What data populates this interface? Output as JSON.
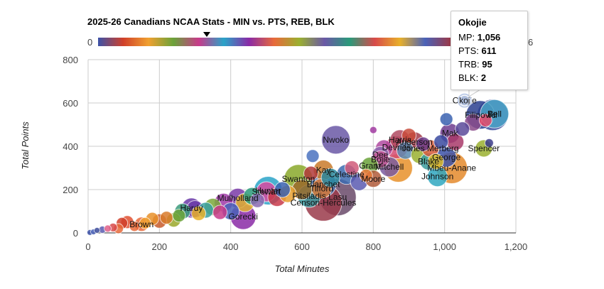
{
  "chart_data": {
    "type": "scatter",
    "title": "2025-26 Canadians NCAA Stats - MIN vs. PTS, REB, BLK",
    "xlabel": "Total Minutes",
    "ylabel": "Total Points",
    "xlim": [
      0,
      1200
    ],
    "ylim": [
      0,
      800
    ],
    "x_ticks": [
      "0",
      "200",
      "400",
      "600",
      "800",
      "1,000",
      "1,200"
    ],
    "y_ticks": [
      "0",
      "200",
      "400",
      "600",
      "800"
    ],
    "grid": true,
    "colorbar": {
      "min_label": "0",
      "max_label": "6"
    },
    "tooltip": {
      "name": "Okojie",
      "rows": [
        {
          "label": "MP:",
          "value": "1,056"
        },
        {
          "label": "PTS:",
          "value": "611"
        },
        {
          "label": "TRB:",
          "value": "95"
        },
        {
          "label": "BLK:",
          "value": "2"
        }
      ]
    },
    "labeled_points": [
      {
        "name": "Fil",
        "x": 1135,
        "y": 545,
        "r": 22,
        "color": "#3b4fa0"
      },
      {
        "name": "Filipovic",
        "x": 1100,
        "y": 545,
        "r": 20,
        "color": "#2a3f8f"
      },
      {
        "name": "Bell",
        "x": 1140,
        "y": 550,
        "r": 20,
        "color": "#49a3c6"
      },
      {
        "name": "Mak",
        "x": 1015,
        "y": 460,
        "r": 14,
        "color": "#6e3c8e"
      },
      {
        "name": "Spencer",
        "x": 1110,
        "y": 390,
        "r": 12,
        "color": "#9ab030"
      },
      {
        "name": "George",
        "x": 1005,
        "y": 350,
        "r": 14,
        "color": "#3c52a8"
      },
      {
        "name": "Mbeu-Anane",
        "x": 1020,
        "y": 300,
        "r": 22,
        "color": "#e48a2b"
      },
      {
        "name": "Blake",
        "x": 955,
        "y": 330,
        "r": 12,
        "color": "#3a9b9c"
      },
      {
        "name": "Johnson",
        "x": 980,
        "y": 260,
        "r": 14,
        "color": "#2fa7c0"
      },
      {
        "name": "Jones Merberg",
        "x": 960,
        "y": 390,
        "r": 12,
        "color": "#d75a3a"
      },
      {
        "name": "Anderson",
        "x": 915,
        "y": 420,
        "r": 14,
        "color": "#a23b4a"
      },
      {
        "name": "Harris",
        "x": 875,
        "y": 430,
        "r": 14,
        "color": "#b04a62"
      },
      {
        "name": "Devries",
        "x": 865,
        "y": 395,
        "r": 16,
        "color": "#d44a72"
      },
      {
        "name": "Okojie",
        "x": 1056,
        "y": 611,
        "r": 7,
        "color": "#9fb1d6"
      },
      {
        "name": "Mitchell",
        "x": 845,
        "y": 305,
        "r": 14,
        "color": "#7a5aa0"
      },
      {
        "name": "Dee",
        "x": 820,
        "y": 360,
        "r": 12,
        "color": "#8e6ab0"
      },
      {
        "name": "Bojie",
        "x": 820,
        "y": 340,
        "r": 12,
        "color": "#c55a9a"
      },
      {
        "name": "Grant",
        "x": 790,
        "y": 310,
        "r": 12,
        "color": "#6aa23a"
      },
      {
        "name": "Moore",
        "x": 800,
        "y": 250,
        "r": 12,
        "color": "#b05a3a"
      },
      {
        "name": "Nwoko",
        "x": 695,
        "y": 430,
        "r": 20,
        "color": "#6a58a6"
      },
      {
        "name": "Celestine",
        "x": 725,
        "y": 270,
        "r": 14,
        "color": "#3c6bb0"
      },
      {
        "name": "Kay",
        "x": 660,
        "y": 290,
        "r": 14,
        "color": "#c97a2a"
      },
      {
        "name": "Swanton",
        "x": 590,
        "y": 250,
        "r": 20,
        "color": "#8aa82a"
      },
      {
        "name": "Lasu",
        "x": 700,
        "y": 165,
        "r": 26,
        "color": "#6a4a6a"
      },
      {
        "name": "Blanchet",
        "x": 660,
        "y": 225,
        "r": 18,
        "color": "#4a72b0"
      },
      {
        "name": "Tilford",
        "x": 655,
        "y": 205,
        "r": 14,
        "color": "#d87a3a"
      },
      {
        "name": "Pitsiladis",
        "x": 620,
        "y": 170,
        "r": 16,
        "color": "#3c9aa0"
      },
      {
        "name": "Censori-Hercules",
        "x": 660,
        "y": 140,
        "r": 26,
        "color": "#9a3a4a"
      },
      {
        "name": "Stewart",
        "x": 500,
        "y": 190,
        "r": 14,
        "color": "#d84aa0"
      },
      {
        "name": "Hunter",
        "x": 505,
        "y": 195,
        "r": 20,
        "color": "#2aa3c8"
      },
      {
        "name": "Mulholland",
        "x": 420,
        "y": 160,
        "r": 14,
        "color": "#7a3aa8"
      },
      {
        "name": "Gorecki",
        "x": 435,
        "y": 75,
        "r": 18,
        "color": "#8a2aa6"
      },
      {
        "name": "Hardy",
        "x": 290,
        "y": 115,
        "r": 14,
        "color": "#6a3aa8"
      },
      {
        "name": "Brown",
        "x": 150,
        "y": 40,
        "r": 10,
        "color": "#e86a3a"
      }
    ],
    "other_points": [
      {
        "x": 5,
        "y": 2,
        "r": 4,
        "color": "#3c52a8"
      },
      {
        "x": 15,
        "y": 5,
        "r": 4,
        "color": "#4a62b8"
      },
      {
        "x": 25,
        "y": 12,
        "r": 4,
        "color": "#3a4a9a"
      },
      {
        "x": 40,
        "y": 15,
        "r": 5,
        "color": "#5a5ab0"
      },
      {
        "x": 55,
        "y": 20,
        "r": 5,
        "color": "#e0608a"
      },
      {
        "x": 70,
        "y": 25,
        "r": 6,
        "color": "#d84a4a"
      },
      {
        "x": 85,
        "y": 20,
        "r": 7,
        "color": "#e86a3a"
      },
      {
        "x": 95,
        "y": 45,
        "r": 8,
        "color": "#d0402a"
      },
      {
        "x": 110,
        "y": 50,
        "r": 9,
        "color": "#e05030"
      },
      {
        "x": 130,
        "y": 30,
        "r": 7,
        "color": "#e86a3a"
      },
      {
        "x": 160,
        "y": 45,
        "r": 8,
        "color": "#f0a030"
      },
      {
        "x": 180,
        "y": 65,
        "r": 9,
        "color": "#e8902a"
      },
      {
        "x": 200,
        "y": 55,
        "r": 10,
        "color": "#c85a2a"
      },
      {
        "x": 220,
        "y": 70,
        "r": 9,
        "color": "#d87a2a"
      },
      {
        "x": 240,
        "y": 60,
        "r": 10,
        "color": "#9aa82a"
      },
      {
        "x": 255,
        "y": 80,
        "r": 9,
        "color": "#6aa23a"
      },
      {
        "x": 265,
        "y": 100,
        "r": 11,
        "color": "#3a9a7a"
      },
      {
        "x": 300,
        "y": 110,
        "r": 12,
        "color": "#6a3aa8"
      },
      {
        "x": 310,
        "y": 90,
        "r": 10,
        "color": "#e8b02a"
      },
      {
        "x": 330,
        "y": 105,
        "r": 11,
        "color": "#3aa0a0"
      },
      {
        "x": 350,
        "y": 120,
        "r": 12,
        "color": "#7aa83a"
      },
      {
        "x": 370,
        "y": 95,
        "r": 10,
        "color": "#c83a8a"
      },
      {
        "x": 380,
        "y": 140,
        "r": 13,
        "color": "#a03aa8"
      },
      {
        "x": 400,
        "y": 100,
        "r": 12,
        "color": "#4a62b8"
      },
      {
        "x": 440,
        "y": 140,
        "r": 13,
        "color": "#e0b030"
      },
      {
        "x": 460,
        "y": 170,
        "r": 12,
        "color": "#2a9a7a"
      },
      {
        "x": 475,
        "y": 150,
        "r": 10,
        "color": "#8a6ab0"
      },
      {
        "x": 530,
        "y": 165,
        "r": 13,
        "color": "#c83a4a"
      },
      {
        "x": 545,
        "y": 200,
        "r": 11,
        "color": "#3a62b0"
      },
      {
        "x": 560,
        "y": 180,
        "r": 12,
        "color": "#e8a030"
      },
      {
        "x": 600,
        "y": 200,
        "r": 14,
        "color": "#9a6a2a"
      },
      {
        "x": 625,
        "y": 275,
        "r": 10,
        "color": "#b03a3a"
      },
      {
        "x": 630,
        "y": 355,
        "r": 9,
        "color": "#4a72c0"
      },
      {
        "x": 680,
        "y": 255,
        "r": 13,
        "color": "#2a8aa0"
      },
      {
        "x": 740,
        "y": 300,
        "r": 10,
        "color": "#d05a7a"
      },
      {
        "x": 760,
        "y": 235,
        "r": 12,
        "color": "#5a5ab0"
      },
      {
        "x": 780,
        "y": 265,
        "r": 9,
        "color": "#e87a3a"
      },
      {
        "x": 800,
        "y": 475,
        "r": 5,
        "color": "#a03aa0"
      },
      {
        "x": 830,
        "y": 390,
        "r": 12,
        "color": "#b04aa0"
      },
      {
        "x": 870,
        "y": 300,
        "r": 20,
        "color": "#e8902a"
      },
      {
        "x": 890,
        "y": 380,
        "r": 12,
        "color": "#5a8ab0"
      },
      {
        "x": 900,
        "y": 450,
        "r": 10,
        "color": "#c84a3a"
      },
      {
        "x": 930,
        "y": 360,
        "r": 12,
        "color": "#9ab030"
      },
      {
        "x": 940,
        "y": 410,
        "r": 10,
        "color": "#6a3a8a"
      },
      {
        "x": 975,
        "y": 330,
        "r": 11,
        "color": "#d8b82a"
      },
      {
        "x": 990,
        "y": 420,
        "r": 10,
        "color": "#3a4aa0"
      },
      {
        "x": 1005,
        "y": 525,
        "r": 9,
        "color": "#3a62b0"
      },
      {
        "x": 1030,
        "y": 420,
        "r": 12,
        "color": "#a83a6a"
      },
      {
        "x": 1050,
        "y": 480,
        "r": 10,
        "color": "#5a4a9a"
      },
      {
        "x": 1080,
        "y": 510,
        "r": 12,
        "color": "#8a4a8a"
      },
      {
        "x": 1125,
        "y": 415,
        "r": 6,
        "color": "#3a3a8a"
      },
      {
        "x": 1115,
        "y": 520,
        "r": 9,
        "color": "#e84a6a"
      }
    ]
  }
}
